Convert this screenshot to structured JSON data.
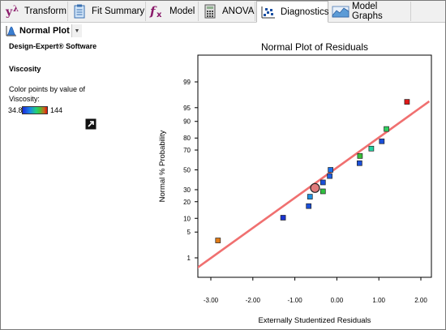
{
  "tabs": [
    {
      "label": "Transform",
      "icon": "lambda-transform-icon"
    },
    {
      "label": "Fit Summary",
      "icon": "clipboard-icon"
    },
    {
      "label": "Model",
      "icon": "fx-model-icon"
    },
    {
      "label": "ANOVA",
      "icon": "calculator-icon"
    },
    {
      "label": "Diagnostics",
      "icon": "scatter-diagnostics-icon",
      "active": true
    },
    {
      "label": "Model Graphs",
      "icon": "surface-graph-icon"
    }
  ],
  "subtoolbar": {
    "plot_select_label": "Normal Plot"
  },
  "side": {
    "software": "Design-Expert® Software",
    "response": "Viscosity",
    "color_caption_1": "Color points by value of",
    "color_caption_2": "Viscosity:",
    "scale_min": "34.8",
    "scale_max": "144"
  },
  "colors": {
    "line": "#f07070",
    "accent": "#1a4fa3"
  },
  "chart_data": {
    "type": "scatter",
    "title": "Normal Plot of Residuals",
    "xlabel": "Externally Studentized Residuals",
    "ylabel": "Normal % Probability",
    "xlim": [
      -3.0,
      2.0
    ],
    "x_ticks": [
      {
        "v": -3,
        "label": "-3.00"
      },
      {
        "v": -2,
        "label": "-2.00"
      },
      {
        "v": -1,
        "label": "-1.00"
      },
      {
        "v": 0,
        "label": "0.00"
      },
      {
        "v": 1,
        "label": "1.00"
      },
      {
        "v": 2,
        "label": "2.00"
      }
    ],
    "y_scale": "normal probability",
    "y_ticks": [
      {
        "v": 1,
        "label": "1"
      },
      {
        "v": 5,
        "label": "5"
      },
      {
        "v": 10,
        "label": "10"
      },
      {
        "v": 20,
        "label": "20"
      },
      {
        "v": 30,
        "label": "30"
      },
      {
        "v": 50,
        "label": "50"
      },
      {
        "v": 70,
        "label": "70"
      },
      {
        "v": 80,
        "label": "80"
      },
      {
        "v": 90,
        "label": "90"
      },
      {
        "v": 95,
        "label": "95"
      },
      {
        "v": 99,
        "label": "99"
      }
    ],
    "fit_line": {
      "x": [
        -3.35,
        2.2
      ],
      "y": [
        0.45,
        96.5
      ]
    },
    "points": [
      {
        "x": -2.83,
        "y": 3.1,
        "color": "#e07b17"
      },
      {
        "x": -1.28,
        "y": 10.3,
        "color": "#1a34d0"
      },
      {
        "x": -0.67,
        "y": 16.9,
        "color": "#1a4fd8"
      },
      {
        "x": -0.64,
        "y": 23.9,
        "color": "#1e8fe0"
      },
      {
        "x": -0.52,
        "y": 31.6,
        "color": "#e07b7b",
        "selected": true
      },
      {
        "x": -0.33,
        "y": 28.5,
        "color": "#30c040"
      },
      {
        "x": -0.33,
        "y": 37.0,
        "color": "#1a4fd8"
      },
      {
        "x": -0.17,
        "y": 43.5,
        "color": "#1e60e0"
      },
      {
        "x": -0.15,
        "y": 50.0,
        "color": "#1a6ee8"
      },
      {
        "x": 0.54,
        "y": 57.0,
        "color": "#1a4fd8"
      },
      {
        "x": 0.55,
        "y": 64.3,
        "color": "#38c038"
      },
      {
        "x": 0.82,
        "y": 71.3,
        "color": "#22d2a0"
      },
      {
        "x": 1.07,
        "y": 77.5,
        "color": "#1a4fd8"
      },
      {
        "x": 1.18,
        "y": 86.0,
        "color": "#30d060"
      },
      {
        "x": 1.67,
        "y": 96.4,
        "color": "#e01818"
      }
    ]
  }
}
